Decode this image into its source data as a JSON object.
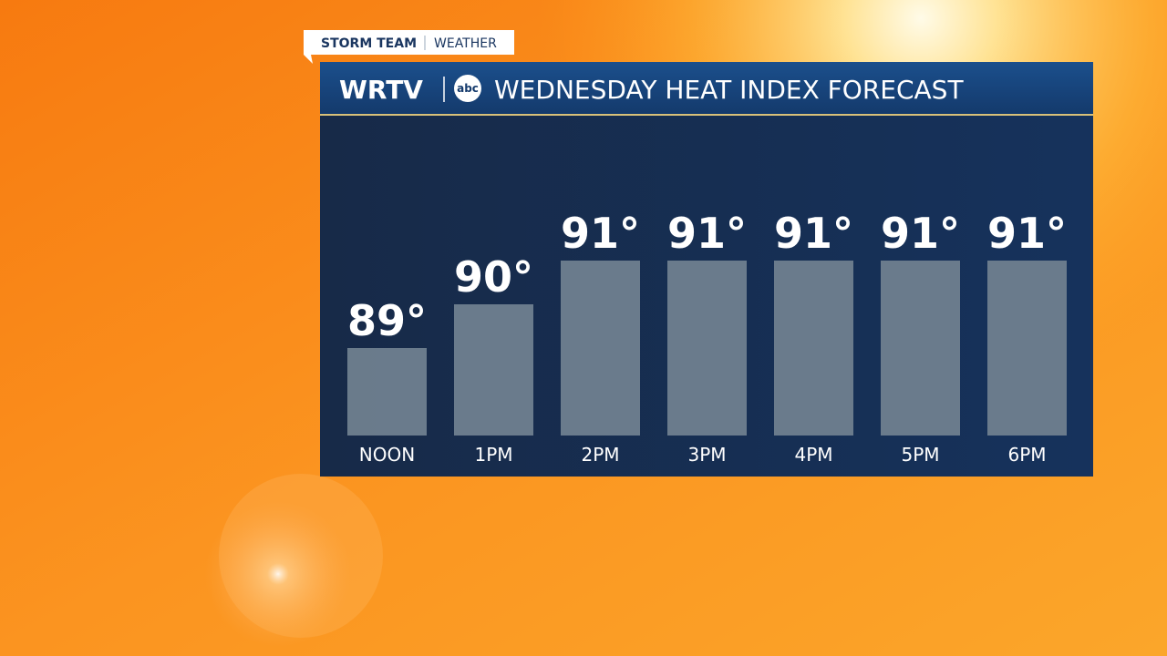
{
  "header": {
    "brand": "STORM TEAM",
    "section": "WEATHER",
    "station": "WRTV",
    "network": "abc"
  },
  "chart_data": {
    "type": "bar",
    "title": "WEDNESDAY HEAT INDEX FORECAST",
    "categories": [
      "NOON",
      "1PM",
      "2PM",
      "3PM",
      "4PM",
      "5PM",
      "6PM"
    ],
    "values": [
      89,
      90,
      91,
      91,
      91,
      91,
      91
    ],
    "value_labels": [
      "89°",
      "90°",
      "91°",
      "91°",
      "91°",
      "91°",
      "91°"
    ],
    "color": "#6f7f8f"
  }
}
